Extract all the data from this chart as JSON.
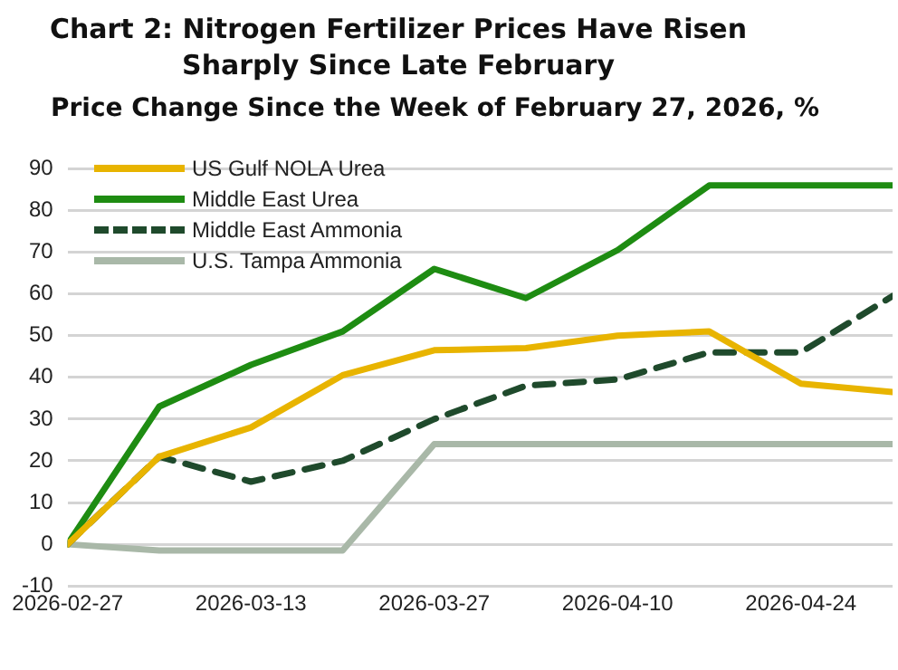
{
  "chart_data": {
    "type": "line",
    "title": "Chart 2: Nitrogen Fertilizer Prices Have Risen Sharply Since Late February",
    "subtitle": "Price Change Since the Week of February 27, 2026, %",
    "x": [
      "2026-02-27",
      "2026-03-06",
      "2026-03-13",
      "2026-03-20",
      "2026-03-27",
      "2026-04-03",
      "2026-04-10",
      "2026-04-17",
      "2026-04-24",
      "2026-05-01"
    ],
    "series": [
      {
        "name": "US Gulf NOLA Urea",
        "color": "#e8b400",
        "values": [
          0,
          21,
          28,
          40.5,
          46.5,
          47,
          50,
          51,
          38.5,
          36.5
        ]
      },
      {
        "name": "Middle East Urea",
        "color": "#1e8c12",
        "values": [
          0,
          33,
          43,
          51,
          66,
          59,
          70.5,
          86,
          86,
          86
        ]
      },
      {
        "name": "Middle East Ammonia",
        "color": "#1f4a2c",
        "line_style": "dashed",
        "values": [
          0,
          21,
          15,
          20,
          30,
          38,
          39.5,
          46,
          46,
          59.5
        ]
      },
      {
        "name": "U.S. Tampa Ammonia",
        "color": "#a9b8a8",
        "values": [
          0,
          -1.5,
          -1.5,
          -1.5,
          24,
          24,
          24,
          24,
          24,
          24
        ]
      }
    ],
    "xlim": [
      "2026-02-27",
      "2026-05-01"
    ],
    "xticks": [
      "2026-02-27",
      "2026-03-13",
      "2026-03-27",
      "2026-04-10",
      "2026-04-24"
    ],
    "ylim": [
      -10,
      90
    ],
    "yticks": [
      -10,
      0,
      10,
      20,
      30,
      40,
      50,
      60,
      70,
      80,
      90
    ],
    "grid": "y",
    "legend": "top left",
    "line_style": "solid",
    "marker": "none"
  }
}
